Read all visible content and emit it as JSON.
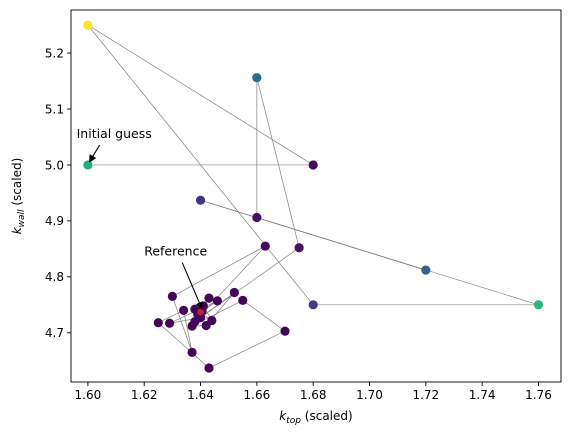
{
  "chart_data": {
    "type": "scatter",
    "xlabel": {
      "main": "k",
      "sub": "top",
      "rest": " (scaled)"
    },
    "ylabel": {
      "main": "k",
      "sub": "wall",
      "rest": " (scaled)"
    },
    "xlim": [
      1.594,
      1.768
    ],
    "ylim": [
      4.612,
      5.277
    ],
    "xticks": [
      1.6,
      1.62,
      1.64,
      1.66,
      1.68,
      1.7,
      1.72,
      1.74,
      1.76
    ],
    "xtick_labels": [
      "1.60",
      "1.62",
      "1.64",
      "1.66",
      "1.68",
      "1.70",
      "1.72",
      "1.74",
      "1.76"
    ],
    "yticks": [
      4.7,
      4.8,
      4.9,
      5.0,
      5.1,
      5.2
    ],
    "ytick_labels": [
      "4.7",
      "4.8",
      "4.9",
      "5.0",
      "5.1",
      "5.2"
    ],
    "colormap": "viridis",
    "line_color": "#808080",
    "path": [
      {
        "x": 1.6,
        "y": 5.0,
        "c": 0.62
      },
      {
        "x": 1.68,
        "y": 5.0,
        "c": 0.03
      },
      {
        "x": 1.6,
        "y": 5.25,
        "c": 1.0
      },
      {
        "x": 1.68,
        "y": 4.75,
        "c": 0.18
      },
      {
        "x": 1.76,
        "y": 4.75,
        "c": 0.65
      },
      {
        "x": 1.64,
        "y": 4.937,
        "c": 0.16
      },
      {
        "x": 1.72,
        "y": 4.812,
        "c": 0.33
      },
      {
        "x": 1.66,
        "y": 4.906,
        "c": 0.05
      },
      {
        "x": 1.66,
        "y": 5.156,
        "c": 0.35
      },
      {
        "x": 1.675,
        "y": 4.852,
        "c": 0.06
      },
      {
        "x": 1.638,
        "y": 4.72,
        "c": 0.02
      },
      {
        "x": 1.663,
        "y": 4.855,
        "c": 0.03
      },
      {
        "x": 1.63,
        "y": 4.765,
        "c": 0.02
      },
      {
        "x": 1.637,
        "y": 4.665,
        "c": 0.01
      },
      {
        "x": 1.634,
        "y": 4.74,
        "c": 0.02
      },
      {
        "x": 1.625,
        "y": 4.718,
        "c": 0.01
      },
      {
        "x": 1.643,
        "y": 4.637,
        "c": 0.01
      },
      {
        "x": 1.67,
        "y": 4.703,
        "c": 0.02
      },
      {
        "x": 1.655,
        "y": 4.758,
        "c": 0.01
      },
      {
        "x": 1.637,
        "y": 4.712,
        "c": 0.01
      },
      {
        "x": 1.642,
        "y": 4.713,
        "c": 0.02
      },
      {
        "x": 1.652,
        "y": 4.772,
        "c": 0.01
      },
      {
        "x": 1.64,
        "y": 4.727,
        "c": 0.01
      },
      {
        "x": 1.629,
        "y": 4.717,
        "c": 0.01
      },
      {
        "x": 1.646,
        "y": 4.757,
        "c": 0.01
      },
      {
        "x": 1.639,
        "y": 4.733,
        "c": 0.01
      },
      {
        "x": 1.643,
        "y": 4.762,
        "c": 0.01
      },
      {
        "x": 1.638,
        "y": 4.742,
        "c": 0.01
      },
      {
        "x": 1.644,
        "y": 4.722,
        "c": 0.01
      },
      {
        "x": 1.641,
        "y": 4.748,
        "c": 0.01
      },
      {
        "x": 1.6395,
        "y": 4.735,
        "c": 0.01
      },
      {
        "x": 1.6405,
        "y": 4.738,
        "c": 0.01
      },
      {
        "x": 1.64,
        "y": 4.737,
        "c": 0.01
      }
    ],
    "reference_point": {
      "x": 1.64,
      "y": 4.737,
      "color": "#d62728"
    },
    "annotations": [
      {
        "text": "Initial guess",
        "xy": [
          1.6,
          5.0
        ],
        "xytext": [
          1.596,
          5.048
        ]
      },
      {
        "text": "Reference",
        "xy": [
          1.64,
          4.737
        ],
        "xytext": [
          1.62,
          4.838
        ]
      }
    ]
  }
}
